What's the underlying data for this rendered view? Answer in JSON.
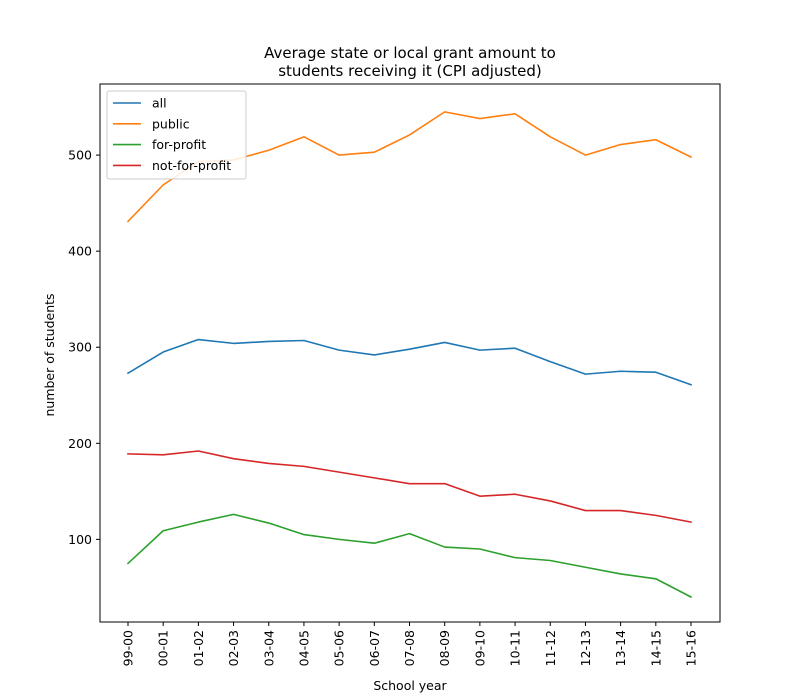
{
  "chart_data": {
    "type": "line",
    "title": "Average state or local grant amount to\nstudents receiving it (CPI adjusted)",
    "xlabel": "School year",
    "ylabel": "number of students",
    "categories": [
      "99-00",
      "00-01",
      "01-02",
      "02-03",
      "03-04",
      "04-05",
      "05-06",
      "06-07",
      "07-08",
      "08-09",
      "09-10",
      "10-11",
      "11-12",
      "12-13",
      "13-14",
      "14-15",
      "15-16"
    ],
    "ylim": [
      14,
      574
    ],
    "yticks": [
      100,
      200,
      300,
      400,
      500
    ],
    "grid": false,
    "legend_position": "top-left",
    "series": [
      {
        "name": "all",
        "color": "#1f77b4",
        "values": [
          273,
          295,
          308,
          304,
          306,
          307,
          297,
          292,
          298,
          305,
          297,
          299,
          285,
          272,
          275,
          274,
          261
        ]
      },
      {
        "name": "public",
        "color": "#ff7f0e",
        "values": [
          431,
          469,
          493,
          495,
          505,
          519,
          500,
          503,
          521,
          545,
          538,
          543,
          519,
          500,
          511,
          516,
          498
        ]
      },
      {
        "name": "for-profit",
        "color": "#2ca02c",
        "values": [
          75,
          109,
          118,
          126,
          117,
          105,
          100,
          96,
          106,
          92,
          90,
          81,
          78,
          71,
          64,
          59,
          40
        ]
      },
      {
        "name": "not-for-profit",
        "color": "#d62728",
        "values": [
          189,
          188,
          192,
          184,
          179,
          176,
          170,
          164,
          158,
          158,
          145,
          147,
          140,
          130,
          130,
          125,
          118
        ]
      }
    ]
  }
}
